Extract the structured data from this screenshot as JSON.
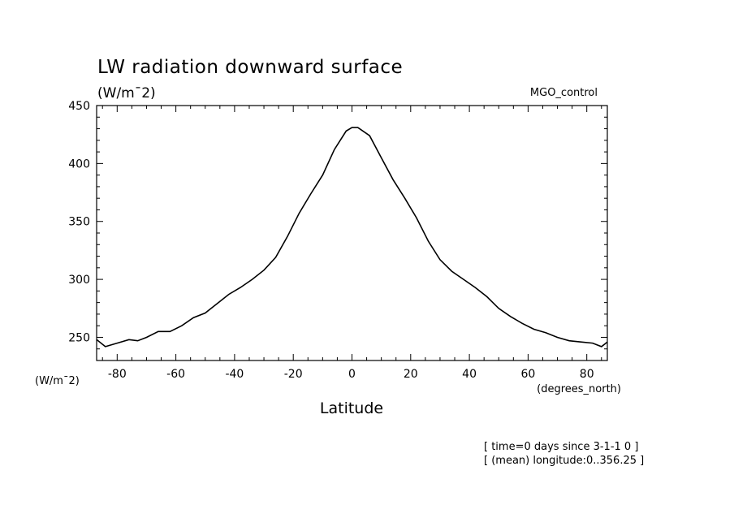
{
  "chart_data": {
    "type": "line",
    "title": "LW radiation downward surface",
    "subtitle": "(W/m¯2)",
    "experiment": "MGO_control",
    "ylabel": "(W/m¯2)",
    "xunits": "(degrees_north)",
    "xlabel": "Latitude",
    "xlim": [
      -87,
      87
    ],
    "ylim": [
      230,
      450
    ],
    "xticks": [
      -80,
      -60,
      -40,
      -20,
      0,
      20,
      40,
      60,
      80
    ],
    "yticks": [
      250,
      300,
      350,
      400,
      450
    ],
    "x": [
      -87,
      -84,
      -80,
      -76,
      -73,
      -70,
      -66,
      -62,
      -58,
      -54,
      -50,
      -46,
      -42,
      -38,
      -34,
      -30,
      -26,
      -22,
      -18,
      -14,
      -10,
      -6,
      -2,
      0,
      2,
      6,
      10,
      14,
      18,
      22,
      26,
      30,
      34,
      38,
      42,
      46,
      50,
      54,
      58,
      62,
      66,
      70,
      74,
      78,
      82,
      85,
      87
    ],
    "values": [
      248,
      242,
      245,
      248,
      247,
      250,
      255,
      255,
      260,
      267,
      271,
      279,
      287,
      293,
      300,
      308,
      319,
      337,
      357,
      374,
      390,
      412,
      428,
      431,
      431,
      424,
      405,
      386,
      370,
      353,
      333,
      317,
      307,
      300,
      293,
      285,
      275,
      268,
      262,
      257,
      254,
      250,
      247,
      246,
      245,
      242,
      246
    ]
  },
  "notes": {
    "line1": "[ time=0 days since 3-1-1 0 ]",
    "line2": "[ (mean) longitude:0..356.25 ]"
  }
}
